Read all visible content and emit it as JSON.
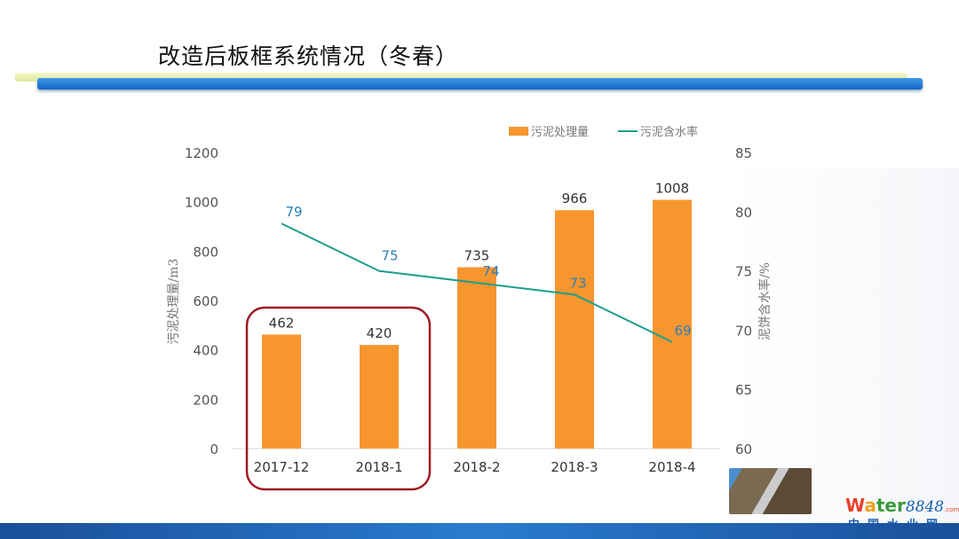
{
  "slide": {
    "title": "改造后板框系统情况（冬春）"
  },
  "logo": {
    "word": "Water",
    "number": "8848",
    "suffix": ".com",
    "subtitle": "中国水业网"
  },
  "chart_data": {
    "type": "bar+line",
    "categories": [
      "2017-12",
      "2018-1",
      "2018-2",
      "2018-3",
      "2018-4"
    ],
    "series": [
      {
        "name": "污泥处理量",
        "type": "bar",
        "axis": "left",
        "values": [
          462,
          420,
          735,
          966,
          1008
        ],
        "color": "#f7962f"
      },
      {
        "name": "污泥含水率",
        "type": "line",
        "axis": "right",
        "values": [
          79,
          75,
          74,
          73,
          69
        ],
        "color": "#1e9e8e"
      }
    ],
    "ylabel": "污泥处理量/m3",
    "ylim": [
      0,
      1200
    ],
    "yticks": [
      0,
      200,
      400,
      600,
      800,
      1000,
      1200
    ],
    "y2label": "泥饼含水率/%",
    "y2lim": [
      60,
      85
    ],
    "y2ticks": [
      60,
      65,
      70,
      75,
      80,
      85
    ],
    "legend": "top-right",
    "grid": false,
    "highlight": {
      "categories": [
        "2017-12",
        "2018-1"
      ],
      "color": "#a01c24"
    }
  }
}
